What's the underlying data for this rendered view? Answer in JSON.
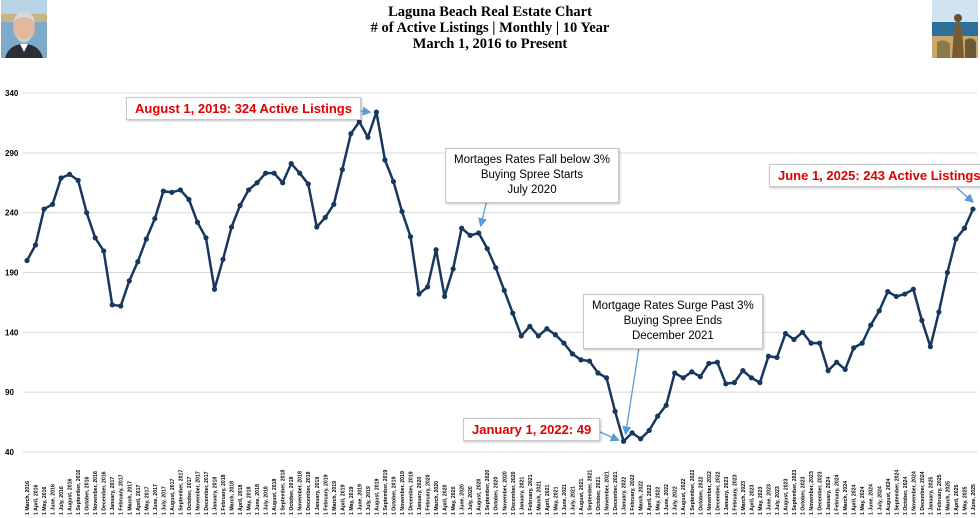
{
  "header": {
    "title_lines": [
      "Laguna Beach Real Estate Chart",
      "# of Active Listings | Monthly | 10 Year",
      "March 1, 2016 to Present"
    ]
  },
  "annotations": {
    "peak": "August 1, 2019:  324 Active Listings",
    "fall_line1": "Mortages Rates Fall below 3%",
    "fall_line2": "Buying Spree Starts",
    "fall_line3": "July 2020",
    "surge_line1": "Mortgage Rates Surge Past 3%",
    "surge_line2": "Buying Spree Ends",
    "surge_line3": "December 2021",
    "trough": "January 1, 2022:  49",
    "latest": "June 1, 2025:  243 Active Listings"
  },
  "colors": {
    "line": "#17375e",
    "marker": "#17375e",
    "annotation_red": "#e00000",
    "grid": "#d9d9d9",
    "arrow": "#5b9bd5"
  },
  "chart_data": {
    "type": "line",
    "title": "Laguna Beach Real Estate Chart",
    "ylim": [
      40,
      340
    ],
    "yticks": [
      40,
      90,
      140,
      190,
      240,
      290,
      340
    ],
    "grid": true,
    "legend": "none",
    "x": [
      "1 March, 2016",
      "1 April, 2016",
      "1 May, 2016",
      "1 June, 2016",
      "1 July, 2016",
      "1 August, 2016",
      "1 September, 2016",
      "1 October, 2016",
      "1 November, 2016",
      "1 December, 2016",
      "1 January, 2017",
      "1 February, 2017",
      "1 March, 2017",
      "1 April, 2017",
      "1 May, 2017",
      "1 June, 2017",
      "1 July, 2017",
      "1 August, 2017",
      "1 September, 2017",
      "1 October, 2017",
      "1 November, 2017",
      "1 December, 2017",
      "1 January, 2018",
      "1 February, 2018",
      "1 March, 2018",
      "1 April, 2018",
      "1 May, 2018",
      "1 June, 2018",
      "1 July, 2018",
      "1 August, 2018",
      "1 September, 2018",
      "1 October, 2018",
      "1 November, 2018",
      "1 December, 2018",
      "1 January, 2019",
      "1 February, 2019",
      "1 March, 2019",
      "1 April, 2019",
      "1 May, 2019",
      "1 June, 2019",
      "1 July, 2019",
      "1 August, 2019",
      "1 September, 2019",
      "1 October, 2019",
      "1 November, 2019",
      "1 December, 2019",
      "1 January, 2020",
      "1 February, 2020",
      "1 March, 2020",
      "1 April, 2020",
      "1 May, 2020",
      "1 June, 2020",
      "1 July, 2020",
      "1 August, 2020",
      "1 September, 2020",
      "1 October, 2020",
      "1 November, 2020",
      "1 December, 2020",
      "1 January, 2021",
      "1 February, 2021",
      "1 March, 2021",
      "1 April, 2021",
      "1 May, 2021",
      "1 June, 2021",
      "1 July, 2021",
      "1 August, 2021",
      "1 September, 2021",
      "1 October, 2021",
      "1 November, 2021",
      "1 December, 2021",
      "1 January, 2022",
      "1 February, 2022",
      "1 March, 2022",
      "1 April, 2022",
      "1 May, 2022",
      "1 June, 2022",
      "1 July, 2022",
      "1 August, 2022",
      "1 September, 2022",
      "1 October, 2022",
      "1 November, 2022",
      "1 December, 2022",
      "1 January, 2023",
      "1 February, 2023",
      "1 March, 2023",
      "1 April, 2023",
      "1 May, 2023",
      "1 June, 2023",
      "1 July, 2023",
      "1 August, 2023",
      "1 September, 2023",
      "1 October, 2023",
      "1 November, 2023",
      "1 December, 2023",
      "1 January, 2024",
      "1 February, 2024",
      "1 March, 2024",
      "1 April, 2024",
      "1 May, 2024",
      "1 June, 2024",
      "1 July, 2024",
      "1 August, 2024",
      "1 September, 2024",
      "1 October, 2024",
      "1 November, 2024",
      "1 December, 2024",
      "1 January, 2025",
      "1 February, 2025",
      "1 March, 2025",
      "1 April, 2025",
      "1 May, 2025",
      "1 June, 2025"
    ],
    "series": [
      {
        "values": [
          200,
          213,
          243,
          247,
          269,
          272,
          267,
          240,
          219,
          208,
          163,
          162,
          183,
          199,
          218,
          235,
          258,
          257,
          259,
          251,
          232,
          219,
          176,
          201,
          228,
          246,
          259,
          265,
          273,
          273,
          265,
          281,
          273,
          264,
          228,
          236,
          247,
          276,
          306,
          316,
          303,
          324,
          284,
          266,
          241,
          220,
          172,
          178,
          209,
          170,
          193,
          227,
          221,
          223,
          210,
          194,
          175,
          156,
          137,
          145,
          137,
          143,
          138,
          131,
          122,
          117,
          116,
          106,
          102,
          74,
          49,
          56,
          51,
          58,
          70,
          79,
          106,
          102,
          107,
          103,
          114,
          115,
          97,
          98,
          108,
          102,
          98,
          120,
          119,
          139,
          134,
          140,
          131,
          131,
          108,
          115,
          109,
          127,
          131,
          146,
          158,
          174,
          170,
          172,
          176,
          150,
          128,
          157,
          190,
          218,
          227,
          243
        ]
      }
    ]
  }
}
